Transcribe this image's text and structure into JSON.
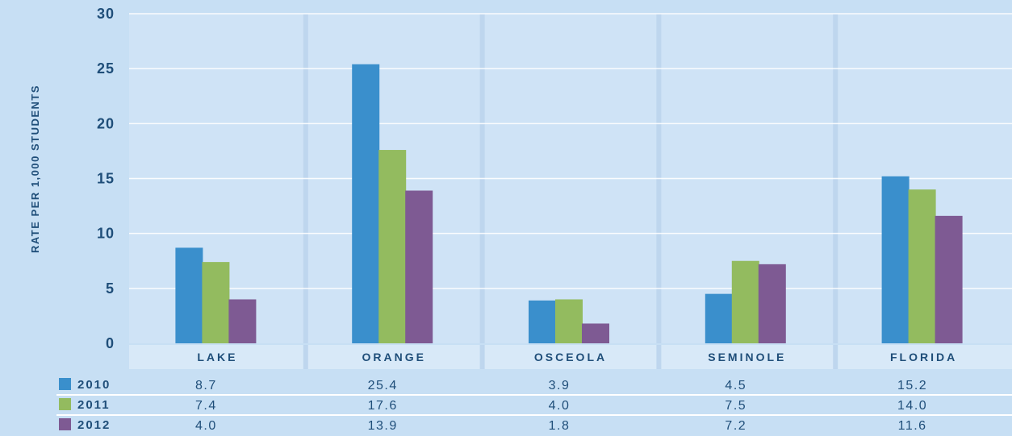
{
  "chart_data": {
    "type": "bar",
    "ylabel": "RATE PER 1,000 STUDENTS",
    "ylim": [
      0,
      30
    ],
    "yticks": [
      "0",
      "5",
      "10",
      "15",
      "20",
      "25",
      "30"
    ],
    "categories": [
      "LAKE",
      "ORANGE",
      "OSCEOLA",
      "SEMINOLE",
      "FLORIDA"
    ],
    "series": [
      {
        "name": "2010",
        "color": "#3a8fcc",
        "values": [
          8.7,
          25.4,
          3.9,
          4.5,
          15.2
        ],
        "labels": [
          "8.7",
          "25.4",
          "3.9",
          "4.5",
          "15.2"
        ]
      },
      {
        "name": "2011",
        "color": "#93bb5f",
        "values": [
          7.4,
          17.6,
          4.0,
          7.5,
          14.0
        ],
        "labels": [
          "7.4",
          "17.6",
          "4.0",
          "7.5",
          "14.0"
        ]
      },
      {
        "name": "2012",
        "color": "#7e5a93",
        "values": [
          4.0,
          13.9,
          1.8,
          7.2,
          11.6
        ],
        "labels": [
          "4.0",
          "13.9",
          "1.8",
          "7.2",
          "11.6"
        ]
      }
    ],
    "grid": true,
    "legend": "data-table"
  }
}
